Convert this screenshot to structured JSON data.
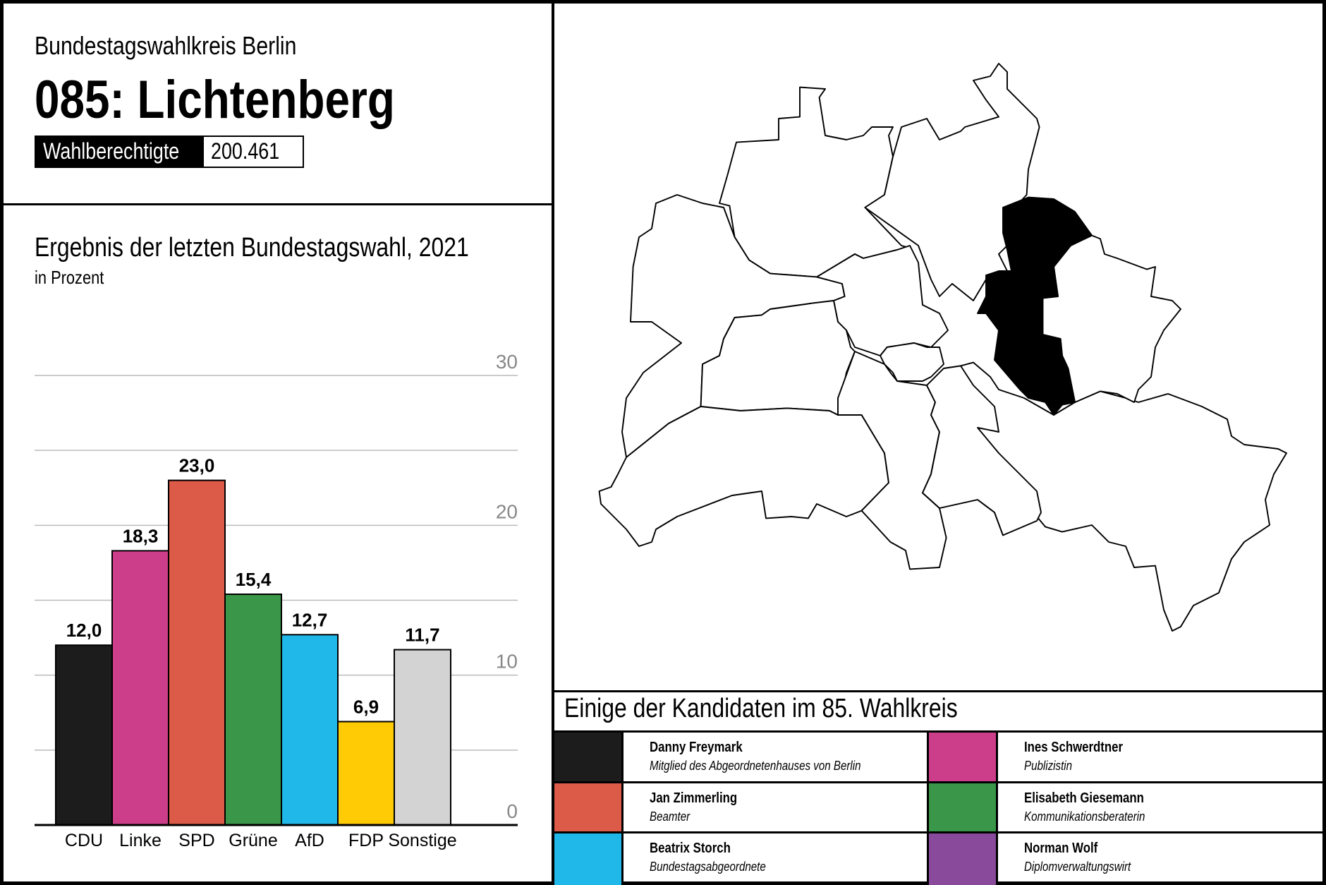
{
  "header": {
    "subtitle": "Bundestagswahlkreis Berlin",
    "title": "085: Lichtenberg",
    "eligible_label": "Wahlberechtigte",
    "eligible_value": "200.461"
  },
  "chart_data": {
    "type": "bar",
    "title": "Ergebnis der letzten Bundestagswahl, 2021",
    "subtitle": "in Prozent",
    "categories": [
      "CDU",
      "Linke",
      "SPD",
      "Grüne",
      "AfD",
      "FDP",
      "Sonstige"
    ],
    "values": [
      12.0,
      18.3,
      23.0,
      15.4,
      12.7,
      6.9,
      11.7
    ],
    "value_labels": [
      "12,0",
      "18,3",
      "23,0",
      "15,4",
      "12,7",
      "6,9",
      "11,7"
    ],
    "colors": [
      "#1c1c1c",
      "#cc3e8a",
      "#dc5a48",
      "#3a9648",
      "#20b8e8",
      "#fecb05",
      "#d3d3d3"
    ],
    "ylim": [
      0,
      30
    ],
    "yticks": [
      0,
      10,
      20,
      30
    ],
    "ytick_labels": [
      "0",
      "10",
      "20",
      "30"
    ],
    "grid_step": 5,
    "grid": true,
    "xlabel": "",
    "ylabel": ""
  },
  "map": {
    "highlight_color": "#000000",
    "highlighted_district": "Lichtenberg"
  },
  "candidates": {
    "title": "Einige der Kandidaten im 85. Wahlkreis",
    "items": [
      {
        "name": "Danny Freymark",
        "desc": "Mitglied des Abgeordnetenhauses von Berlin",
        "color": "#1c1c1c"
      },
      {
        "name": "Ines Schwerdtner",
        "desc": "Publizistin",
        "color": "#cc3e8a"
      },
      {
        "name": "Jan Zimmerling",
        "desc": "Beamter",
        "color": "#dc5a48"
      },
      {
        "name": "Elisabeth Giesemann",
        "desc": "Kommunikationsberaterin",
        "color": "#3a9648"
      },
      {
        "name": "Beatrix Storch",
        "desc": "Bundestagsabgeordnete",
        "color": "#20b8e8"
      },
      {
        "name": "Norman Wolf",
        "desc": "Diplomverwaltungswirt",
        "color": "#8a4a9c"
      }
    ]
  }
}
